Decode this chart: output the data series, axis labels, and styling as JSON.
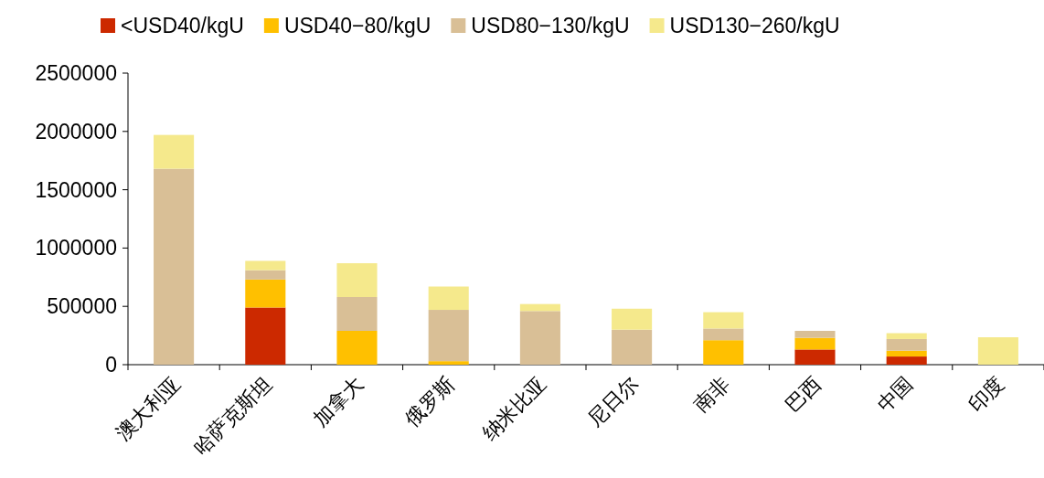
{
  "chart_data": {
    "type": "bar",
    "stacked": true,
    "legend": "top",
    "categories": [
      "澳大利亚",
      "哈萨克斯坦",
      "加拿大",
      "俄罗斯",
      "纳米比亚",
      "尼日尔",
      "南非",
      "巴西",
      "中国",
      "印度"
    ],
    "series": [
      {
        "name": "<USD40/kgU",
        "color": "#cc2900",
        "values": [
          0,
          490000,
          0,
          0,
          0,
          0,
          0,
          130000,
          70000,
          0
        ]
      },
      {
        "name": "USD40−80/kgU",
        "color": "#ffc000",
        "values": [
          0,
          240000,
          290000,
          30000,
          0,
          0,
          210000,
          100000,
          50000,
          0
        ]
      },
      {
        "name": "USD80−130/kgU",
        "color": "#d9bf96",
        "values": [
          1680000,
          80000,
          290000,
          440000,
          460000,
          300000,
          100000,
          60000,
          100000,
          0
        ]
      },
      {
        "name": "USD130−260/kgU",
        "color": "#f5e98c",
        "values": [
          290000,
          80000,
          290000,
          200000,
          60000,
          180000,
          140000,
          0,
          50000,
          235000
        ]
      }
    ],
    "ylim": [
      0,
      2500000
    ],
    "yticks": [
      0,
      500000,
      1000000,
      1500000,
      2000000,
      2500000
    ],
    "grid": false
  }
}
